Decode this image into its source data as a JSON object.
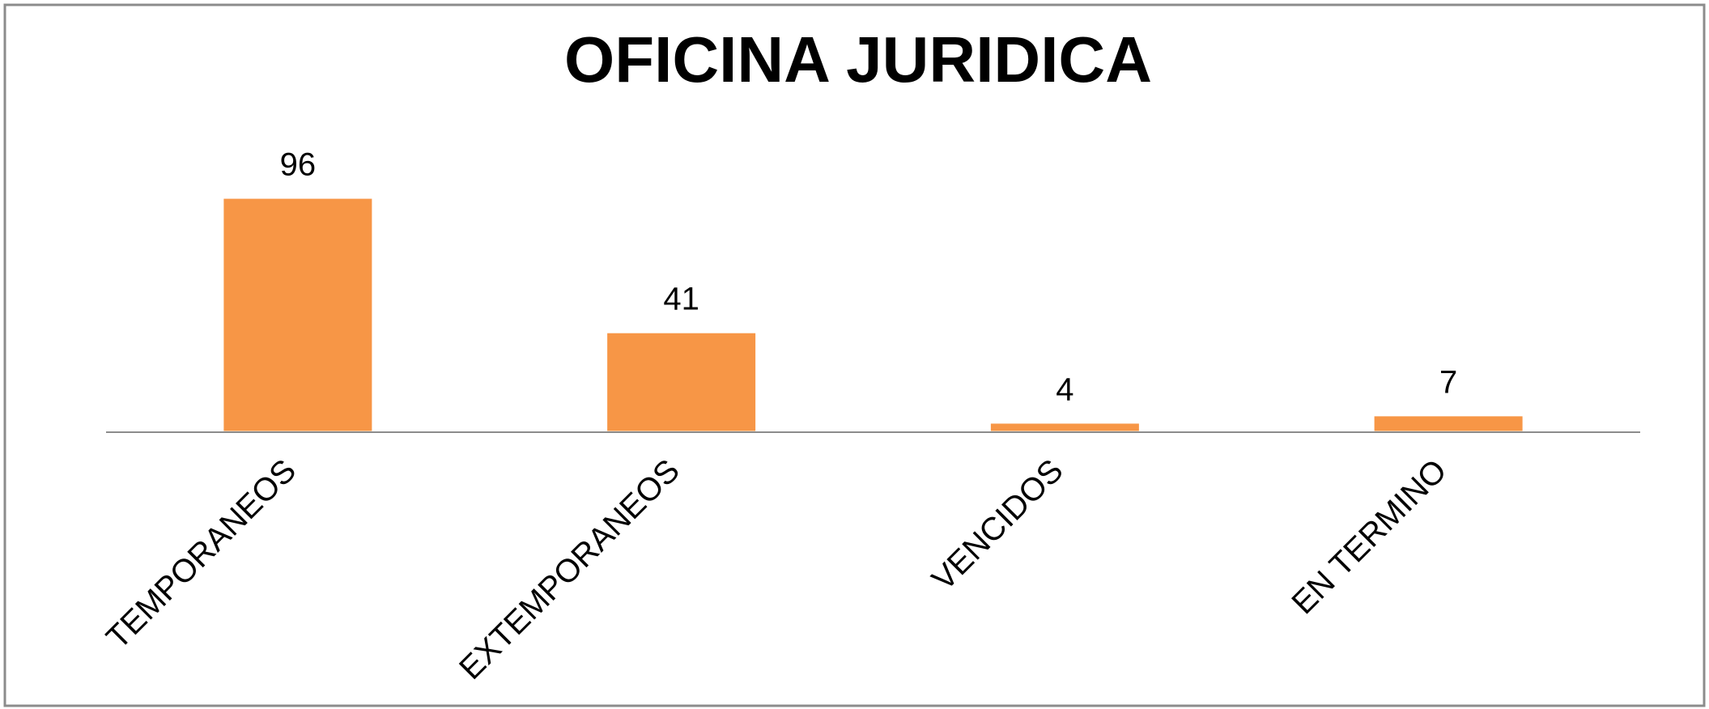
{
  "chart_data": {
    "type": "bar",
    "title": "OFICINA JURIDICA",
    "categories": [
      "TEMPORANEOS",
      "EXTEMPORANEOS",
      "VENCIDOS",
      "EN TERMINO"
    ],
    "values": [
      96,
      41,
      4,
      7
    ],
    "color": "#f79646",
    "ylim": [
      0,
      100
    ]
  }
}
